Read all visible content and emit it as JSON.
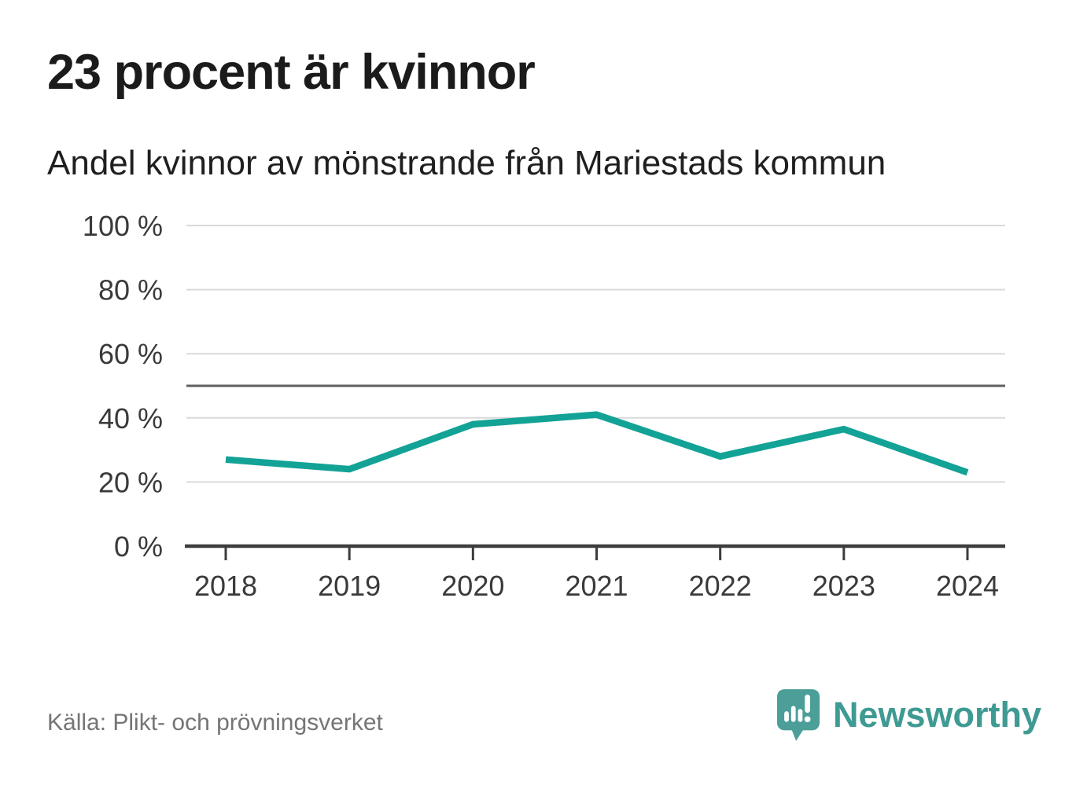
{
  "header": {
    "title": "23 procent är kvinnor",
    "subtitle": "Andel kvinnor av mönstrande från Mariestads kommun"
  },
  "chart_data": {
    "type": "line",
    "title": "23 procent är kvinnor",
    "subtitle": "Andel kvinnor av mönstrande från Mariestads kommun",
    "x": [
      2018,
      2019,
      2020,
      2021,
      2022,
      2023,
      2024
    ],
    "xtick_labels": [
      "2018",
      "2019",
      "2020",
      "2021",
      "2022",
      "2023",
      "2024"
    ],
    "series": [
      {
        "name": "Andel kvinnor av mönstrande",
        "unit": "%",
        "values": [
          27,
          24,
          38,
          41,
          28,
          36.5,
          23
        ]
      }
    ],
    "ylim": [
      0,
      100
    ],
    "yticks": [
      {
        "value": 0,
        "label": "0 %"
      },
      {
        "value": 20,
        "label": "20 %"
      },
      {
        "value": 40,
        "label": "40 %"
      },
      {
        "value": 60,
        "label": "60 %"
      },
      {
        "value": 80,
        "label": "80 %"
      },
      {
        "value": 100,
        "label": "100 %"
      }
    ],
    "reference_line": {
      "value": 50
    },
    "grid": "horizontal",
    "legend": "none"
  },
  "footer": {
    "source": "Källa: Plikt- och prövningsverket",
    "brand": "Newsworthy"
  },
  "colors": {
    "line": "#13a296",
    "grid": "#dadada",
    "axis": "#3d3d3d",
    "reference": "#5f5f5f",
    "tick_text": "#3a3a3a",
    "title_text": "#1b1b1b",
    "muted_text": "#757575",
    "logo_fill": "#4c9e98",
    "wordmark": "#3e9a93"
  }
}
